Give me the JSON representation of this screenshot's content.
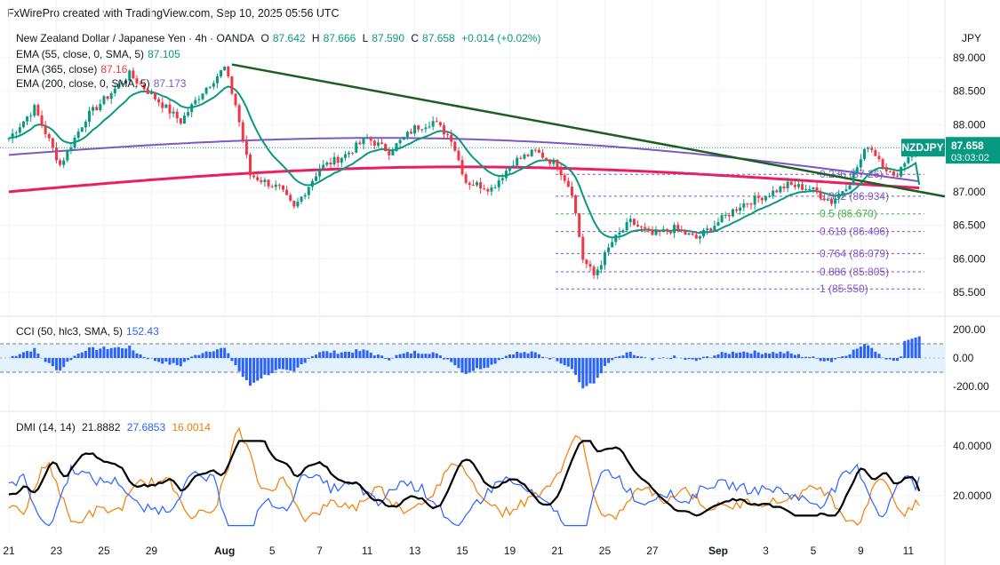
{
  "header": {
    "credit": "FxWirePro created with TradingView.com, Sep 10, 2025 05:56 UTC",
    "currency": "JPY"
  },
  "legend": {
    "symbol_line": "New Zealand Dollar / Japanese Yen · 4h · OANDA",
    "open_label": "O",
    "open": "87.642",
    "high_label": "H",
    "high": "87.666",
    "low_label": "L",
    "low": "87.590",
    "close_label": "C",
    "close": "87.658",
    "change": "+0.014 (+0.02%)",
    "ema55_label": "EMA (55, close, 0, SMA, 5)",
    "ema55_value": "87.105",
    "ema365_label": "EMA (365, close)",
    "ema365_value": "87.16",
    "ema200_label": "EMA (200, close, 0, SMA, 5)",
    "ema200_value": "87.173",
    "cci_label": "CCI (50, hlc3, SMA, 5)",
    "cci_value": "152.43",
    "dmi_label": "DMI (14, 14)",
    "dmi_adx": "21.8882",
    "dmi_plus": "27.6853",
    "dmi_minus": "16.0014"
  },
  "price_tag": {
    "symbol": "NZDJPY",
    "price": "87.658",
    "countdown": "03:03:02"
  },
  "colors": {
    "up": "#089981",
    "down": "#f23645",
    "ema55": "#089981",
    "ema365": "#7e57c2",
    "ema200": "#e91e63",
    "trendline": "#1b5e20",
    "cci": "#2962ff",
    "adx": "#000000",
    "di_plus": "#2962ff",
    "di_minus": "#f57c00",
    "fib": "#7e57c2"
  },
  "chart_data": [
    {
      "type": "candlestick",
      "title": "New Zealand Dollar / Japanese Yen · 4h · OANDA",
      "ylim": [
        85.3,
        89.2
      ],
      "yticks": [
        "89.000",
        "88.500",
        "88.000",
        "87.500",
        "87.000",
        "86.500",
        "86.000",
        "85.500"
      ],
      "ytick_values": [
        89.0,
        88.5,
        88.0,
        87.5,
        87.0,
        86.5,
        86.0,
        85.5
      ],
      "xticks": [
        "21",
        "23",
        "25",
        "29",
        "Aug",
        "5",
        "7",
        "11",
        "13",
        "15",
        "19",
        "21",
        "25",
        "27",
        "Sep",
        "3",
        "5",
        "9",
        "11"
      ],
      "xtick_index": [
        0,
        13,
        26,
        39,
        59,
        72,
        85,
        98,
        111,
        124,
        137,
        150,
        163,
        176,
        194,
        207,
        220,
        233,
        246
      ],
      "series": [
        {
          "name": "EMA (55, close, 0, SMA, 5)",
          "last": 87.105
        },
        {
          "name": "EMA (365, close)",
          "last": 87.16
        },
        {
          "name": "EMA (200, close, 0, SMA, 5)",
          "last": 87.173
        }
      ],
      "fibonacci": [
        {
          "level": "0.236",
          "value": "87.26"
        },
        {
          "level": "0.382",
          "value": "86.934"
        },
        {
          "level": "0.5",
          "value": "86.670"
        },
        {
          "level": "0.618",
          "value": "86.406"
        },
        {
          "level": "0.764",
          "value": "86.079"
        },
        {
          "level": "0.886",
          "value": "85.805"
        },
        {
          "level": "1",
          "value": "85.550"
        }
      ],
      "trendline": {
        "from": 88.9,
        "to": 86.93
      },
      "last_close": 87.658
    },
    {
      "type": "bar",
      "title": "CCI (50, hlc3, SMA, 5)",
      "ylim": [
        -300,
        250
      ],
      "yticks": [
        "200.00",
        "0.00",
        "-200.00"
      ],
      "ytick_values": [
        200,
        0,
        -200
      ],
      "band": [
        -100,
        100
      ],
      "last": 152.43
    },
    {
      "type": "line",
      "title": "DMI (14, 14)",
      "ylim": [
        5,
        50
      ],
      "yticks": [
        "40.0000",
        "20.0000"
      ],
      "ytick_values": [
        40,
        20
      ],
      "series": [
        {
          "name": "ADX",
          "last": 21.8882
        },
        {
          "name": "+DI",
          "last": 27.6853
        },
        {
          "name": "-DI",
          "last": 16.0014
        }
      ]
    }
  ]
}
